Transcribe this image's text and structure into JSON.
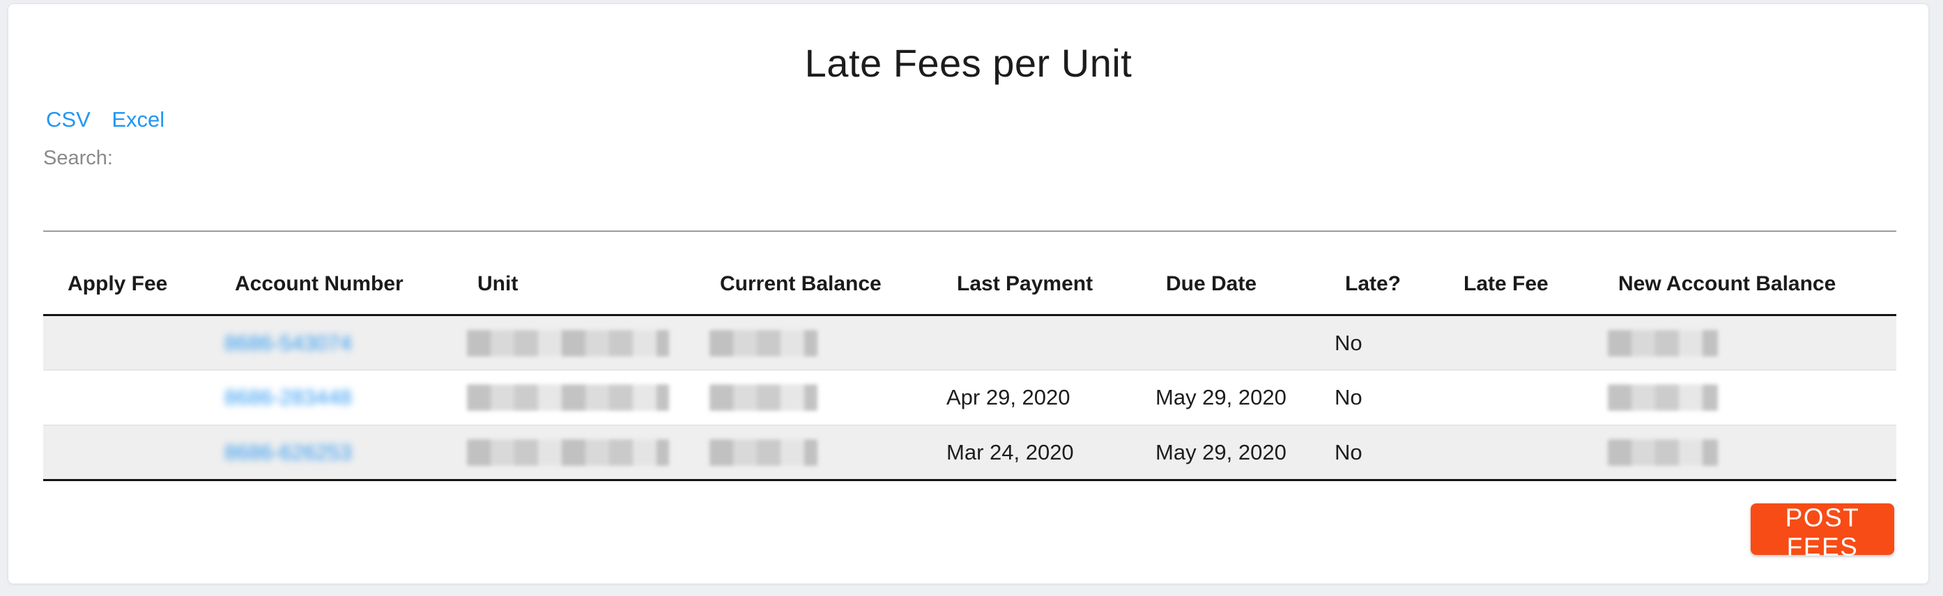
{
  "page": {
    "title": "Late Fees per Unit"
  },
  "toolbar": {
    "export_csv_label": "CSV",
    "export_excel_label": "Excel",
    "search_label": "Search:",
    "search_value": ""
  },
  "table": {
    "columns": [
      "Apply Fee",
      "Account Number",
      "Unit",
      "Current Balance",
      "Last Payment",
      "Due Date",
      "Late?",
      "Late Fee",
      "New Account Balance"
    ],
    "rows": [
      {
        "apply_fee": "",
        "account_number": "8686-543074",
        "unit": "",
        "current_balance": "",
        "last_payment": "",
        "due_date": "",
        "late": "No",
        "late_fee": "",
        "new_account_balance": "",
        "redacted": [
          "unit",
          "current_balance",
          "new_account_balance"
        ],
        "account_blurred": true
      },
      {
        "apply_fee": "",
        "account_number": "8686-283448",
        "unit": "",
        "current_balance": "",
        "last_payment": "Apr 29, 2020",
        "due_date": "May 29, 2020",
        "late": "No",
        "late_fee": "",
        "new_account_balance": "",
        "redacted": [
          "unit",
          "current_balance",
          "new_account_balance"
        ],
        "account_blurred": true
      },
      {
        "apply_fee": "",
        "account_number": "8686-626253",
        "unit": "",
        "current_balance": "",
        "last_payment": "Mar 24, 2020",
        "due_date": "May 29, 2020",
        "late": "No",
        "late_fee": "",
        "new_account_balance": "",
        "redacted": [
          "unit",
          "current_balance",
          "new_account_balance"
        ],
        "account_blurred": true
      }
    ]
  },
  "actions": {
    "post_fees_label": "POST FEES"
  },
  "colors": {
    "link_blue": "#2196f3",
    "button_orange": "#f74c15",
    "row_stripe": "#efefef",
    "page_background": "#edeff2"
  }
}
